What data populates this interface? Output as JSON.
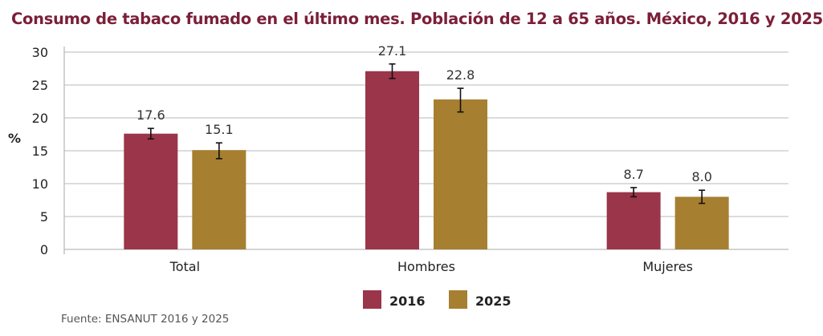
{
  "chart_data": {
    "type": "bar",
    "title": "Consumo de tabaco fumado en el último mes. Población de 12 a 65 años. México, 2016 y 2025",
    "ylabel": "%",
    "xlabel": "",
    "ylim": [
      0,
      30
    ],
    "yticks": [
      0,
      5,
      10,
      15,
      20,
      25,
      30
    ],
    "grid": true,
    "legend": "bottom",
    "categories": [
      "Total",
      "Hombres",
      "Mujeres"
    ],
    "series": [
      {
        "name": "2016",
        "color": "#9b3549",
        "values": [
          17.6,
          27.1,
          8.7
        ],
        "labels": [
          "17.6",
          "27.1",
          "8.7"
        ],
        "error_low": [
          16.8,
          26.0,
          8.0
        ],
        "error_high": [
          18.4,
          28.2,
          9.4
        ]
      },
      {
        "name": "2025",
        "color": "#a67f30",
        "values": [
          15.1,
          22.8,
          8.0
        ],
        "labels": [
          "15.1",
          "22.8",
          "8.0"
        ],
        "error_low": [
          13.8,
          20.9,
          7.0
        ],
        "error_high": [
          16.2,
          24.5,
          9.0
        ]
      }
    ],
    "source": "Fuente: ENSANUT 2016 y 2025"
  }
}
